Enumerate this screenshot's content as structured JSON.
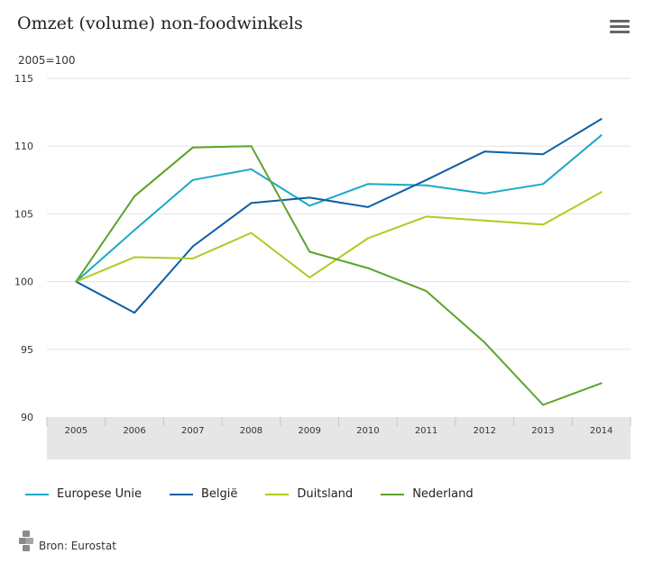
{
  "header": {
    "title": "Omzet (volume) non-foodwinkels",
    "menu_icon": "hamburger-menu-icon"
  },
  "source": {
    "label": "Bron: Eurostat",
    "logo_icon": "cbs-logo-icon"
  },
  "chart_data": {
    "type": "line",
    "title": "Omzet (volume) non-foodwinkels",
    "ylabel": "2005=100",
    "xlabel": "",
    "x": [
      "2005",
      "2006",
      "2007",
      "2008",
      "2009",
      "2010",
      "2011",
      "2012",
      "2013",
      "2014"
    ],
    "ylim": [
      90,
      115
    ],
    "yticks": [
      90,
      95,
      100,
      105,
      110,
      115
    ],
    "grid": true,
    "legend_position": "bottom",
    "series": [
      {
        "name": "Europese Unie",
        "color": "#1ba8c8",
        "values": [
          100,
          103.8,
          107.5,
          108.3,
          105.6,
          107.2,
          107.1,
          106.5,
          107.2,
          110.8
        ]
      },
      {
        "name": "België",
        "color": "#0b5fa5",
        "values": [
          100,
          97.7,
          102.6,
          105.8,
          106.2,
          105.5,
          107.5,
          109.6,
          109.4,
          112.0
        ]
      },
      {
        "name": "Duitsland",
        "color": "#afcb1f",
        "values": [
          100,
          101.8,
          101.7,
          103.6,
          100.3,
          103.2,
          104.8,
          104.5,
          104.2,
          106.6
        ]
      },
      {
        "name": "Nederland",
        "color": "#5ba32a",
        "values": [
          100,
          106.3,
          109.9,
          110.0,
          102.2,
          101.0,
          99.3,
          95.5,
          90.9,
          92.5
        ]
      }
    ]
  }
}
